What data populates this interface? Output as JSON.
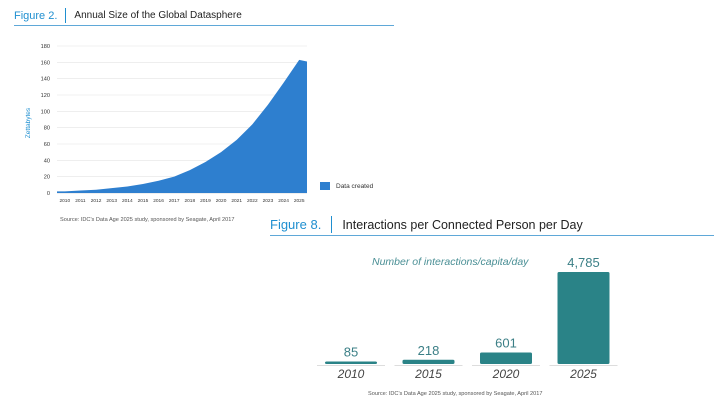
{
  "colors": {
    "fig_number": "#1f8fd0",
    "area_fill": "#2e7fcf",
    "bar_fill": "#2a8387",
    "bar_labels": "#3b7f86",
    "year_labels": "#444444"
  },
  "fig2": {
    "number": "Figure 2.",
    "title": "Annual Size of the Global Datasphere",
    "source": "Source: IDC's Data Age 2025 study, sponsored by Seagate, April 2017"
  },
  "fig8": {
    "number": "Figure 8.",
    "title": "Interactions per Connected Person per Day",
    "source": "Source: IDC's Data Age 2025 study, sponsored by Seagate, April 2017"
  },
  "chart_data": [
    {
      "type": "area",
      "title": "Annual Size of the Global Datasphere",
      "ylabel": "Zettabytes",
      "xlabel": "",
      "ylim": [
        0,
        180
      ],
      "yticks": [
        0,
        20,
        40,
        60,
        80,
        100,
        120,
        140,
        160,
        180
      ],
      "categories": [
        "2010",
        "2011",
        "2012",
        "2013",
        "2014",
        "2015",
        "2016",
        "2017",
        "2018",
        "2019",
        "2020",
        "2021",
        "2022",
        "2023",
        "2024",
        "2025"
      ],
      "series": [
        {
          "name": "Data created",
          "values": [
            2,
            3,
            4,
            6,
            8,
            11,
            15,
            20,
            28,
            38,
            50,
            65,
            84,
            108,
            135,
            163
          ]
        }
      ],
      "grid": true,
      "legend": "right"
    },
    {
      "type": "bar",
      "title": "Interactions per Connected Person per Day",
      "subtitle": "Number of interactions/capita/day",
      "categories": [
        "2010",
        "2015",
        "2020",
        "2025"
      ],
      "values": [
        85,
        218,
        601,
        4785
      ],
      "value_labels": [
        "85",
        "218",
        "601",
        "4,785"
      ]
    }
  ]
}
